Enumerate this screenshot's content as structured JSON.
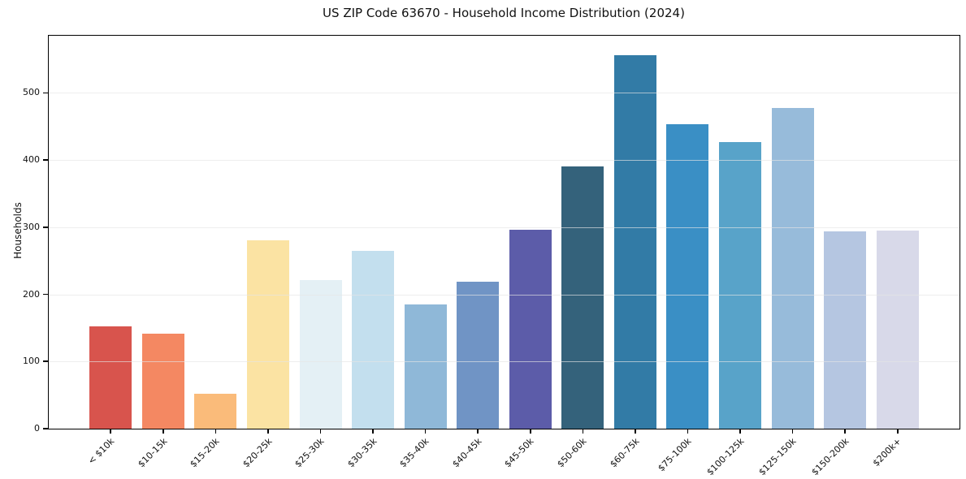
{
  "chart": {
    "title": "US ZIP Code 63670 - Household Income Distribution (2024)",
    "ylabel": "Households"
  },
  "chart_data": {
    "type": "bar",
    "title": "US ZIP Code 63670 - Household Income Distribution (2024)",
    "xlabel": "",
    "ylabel": "Households",
    "categories": [
      "< $10k",
      "$10-15k",
      "$15-20k",
      "$20-25k",
      "$25-30k",
      "$30-35k",
      "$35-40k",
      "$40-45k",
      "$45-50k",
      "$50-60k",
      "$60-75k",
      "$75-100k",
      "$100-125k",
      "$125-150k",
      "$150-200k",
      "$200k+"
    ],
    "values": [
      152,
      141,
      52,
      281,
      221,
      265,
      185,
      219,
      296,
      390,
      556,
      453,
      427,
      477,
      294,
      295
    ],
    "bar_colors": [
      "#d8544d",
      "#f48862",
      "#fabb7a",
      "#fbe3a3",
      "#e4f0f5",
      "#c3dfee",
      "#8fb8d8",
      "#7094c5",
      "#5c5ca9",
      "#34627b",
      "#327ba6",
      "#3a8fc5",
      "#58a3c9",
      "#97bbda",
      "#b5c6e1",
      "#d8d9e9"
    ],
    "yticks": [
      0,
      100,
      200,
      300,
      400,
      500
    ],
    "ylim": [
      0,
      585
    ],
    "grid": "horizontal",
    "gridline_color": "#e5e5e5",
    "x_tick_rotation": 45,
    "legend": "none",
    "background": "#ffffff",
    "spine_color": "#000000"
  }
}
